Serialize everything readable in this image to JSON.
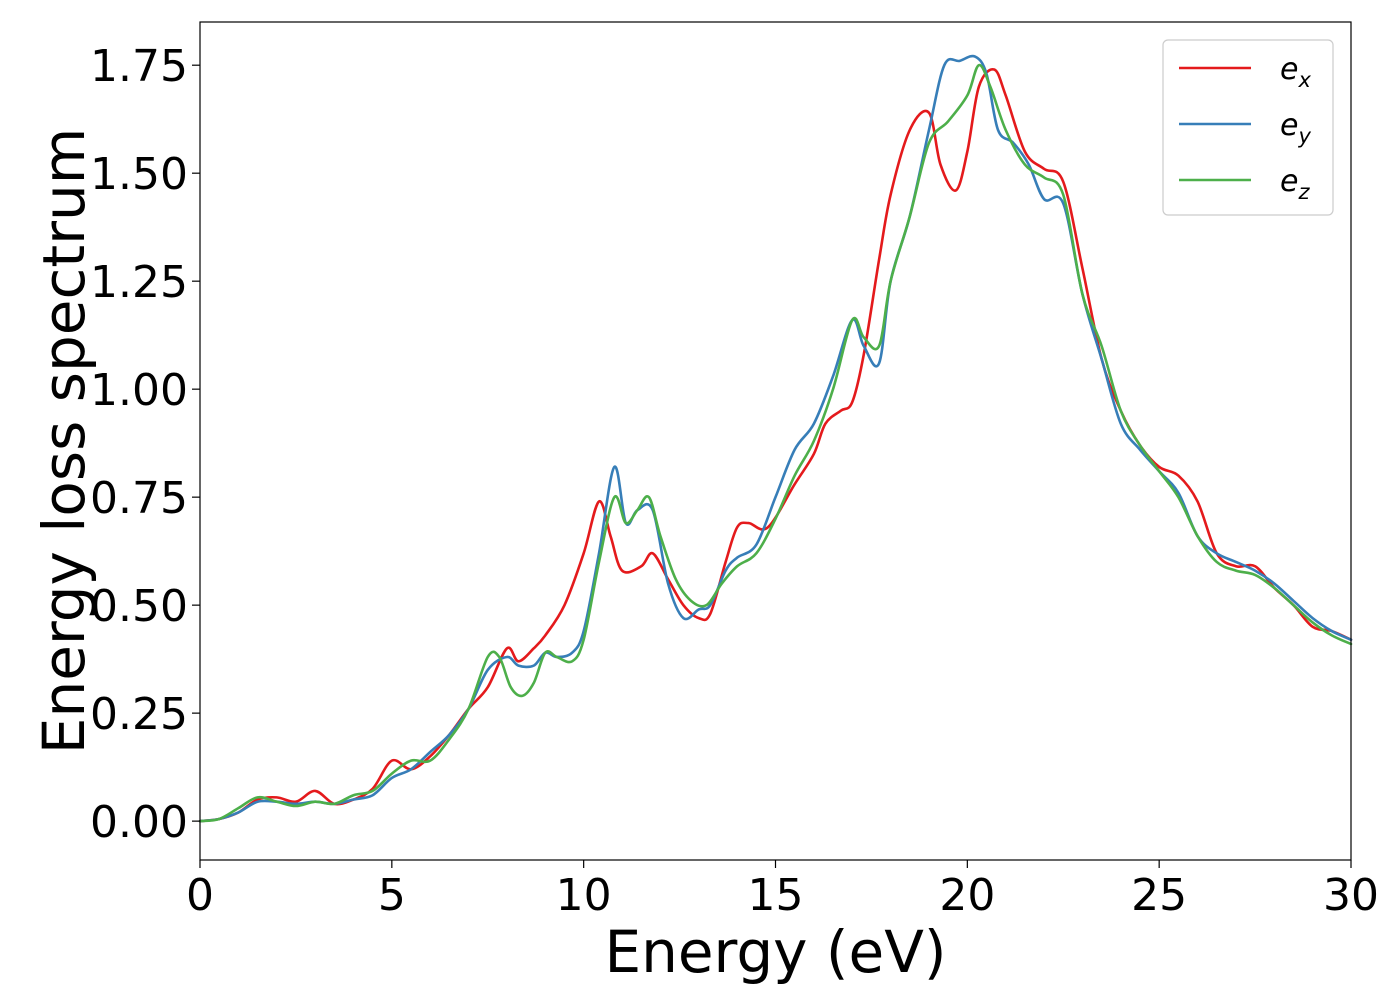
{
  "chart_data": {
    "type": "line",
    "title": "",
    "xlabel": "Energy (eV)",
    "ylabel": "Energy loss spectrum",
    "xlim": [
      0,
      30
    ],
    "ylim": [
      -0.09,
      1.85
    ],
    "xticks": [
      0,
      5,
      10,
      15,
      20,
      25,
      30
    ],
    "xtick_labels": [
      "0",
      "5",
      "10",
      "15",
      "20",
      "25",
      "30"
    ],
    "yticks": [
      0,
      0.25,
      0.5,
      0.75,
      1.0,
      1.25,
      1.5,
      1.75
    ],
    "ytick_labels": [
      "0.00",
      "0.25",
      "0.50",
      "0.75",
      "1.00",
      "1.25",
      "1.50",
      "1.75"
    ],
    "grid": false,
    "legend_position": "top-right",
    "series": [
      {
        "name": "e_x",
        "label_base": "e",
        "label_sub": "x",
        "color": "#e41a1c",
        "x": [
          0,
          0.5,
          1.0,
          1.5,
          2.0,
          2.5,
          3.0,
          3.5,
          4.0,
          4.5,
          5.0,
          5.5,
          6.0,
          6.5,
          7.0,
          7.5,
          8.0,
          8.3,
          8.7,
          9.0,
          9.5,
          10.0,
          10.4,
          10.7,
          11.0,
          11.5,
          11.8,
          12.2,
          12.6,
          13.0,
          13.3,
          13.7,
          14.0,
          14.3,
          14.8,
          15.5,
          16.0,
          16.3,
          16.7,
          17.0,
          17.3,
          17.7,
          18.0,
          18.5,
          19.0,
          19.3,
          19.7,
          20.0,
          20.3,
          20.7,
          21.0,
          21.5,
          22.0,
          22.5,
          23.0,
          23.5,
          24.0,
          24.5,
          25.0,
          25.5,
          26.0,
          26.5,
          27.0,
          27.5,
          28.0,
          28.5,
          29.0,
          29.5,
          30.0
        ],
        "values": [
          0.0,
          0.005,
          0.02,
          0.05,
          0.055,
          0.045,
          0.07,
          0.04,
          0.05,
          0.075,
          0.14,
          0.12,
          0.15,
          0.2,
          0.26,
          0.31,
          0.4,
          0.37,
          0.4,
          0.43,
          0.5,
          0.62,
          0.74,
          0.66,
          0.58,
          0.59,
          0.62,
          0.56,
          0.5,
          0.47,
          0.48,
          0.6,
          0.68,
          0.69,
          0.68,
          0.78,
          0.85,
          0.92,
          0.95,
          0.97,
          1.08,
          1.3,
          1.45,
          1.6,
          1.64,
          1.52,
          1.46,
          1.55,
          1.7,
          1.74,
          1.68,
          1.55,
          1.51,
          1.48,
          1.28,
          1.07,
          0.95,
          0.87,
          0.82,
          0.8,
          0.74,
          0.62,
          0.59,
          0.59,
          0.54,
          0.5,
          0.45,
          0.44,
          0.42
        ]
      },
      {
        "name": "e_y",
        "label_base": "e",
        "label_sub": "y",
        "color": "#377eb8",
        "x": [
          0,
          0.5,
          1.0,
          1.5,
          2.0,
          2.5,
          3.0,
          3.5,
          4.0,
          4.5,
          5.0,
          5.5,
          6.0,
          6.5,
          7.0,
          7.5,
          8.0,
          8.3,
          8.7,
          9.0,
          9.3,
          9.7,
          10.0,
          10.4,
          10.8,
          11.1,
          11.4,
          11.8,
          12.2,
          12.6,
          13.0,
          13.3,
          13.7,
          14.0,
          14.5,
          15.0,
          15.5,
          16.0,
          16.5,
          17.0,
          17.3,
          17.7,
          18.0,
          18.5,
          19.0,
          19.4,
          19.8,
          20.2,
          20.5,
          20.8,
          21.2,
          21.6,
          22.0,
          22.5,
          23.0,
          23.5,
          24.0,
          24.5,
          25.0,
          25.5,
          26.0,
          26.5,
          27.0,
          27.5,
          28.0,
          28.5,
          29.0,
          29.5,
          30.0
        ],
        "values": [
          0.0,
          0.005,
          0.02,
          0.045,
          0.045,
          0.04,
          0.045,
          0.04,
          0.05,
          0.06,
          0.1,
          0.12,
          0.16,
          0.2,
          0.26,
          0.35,
          0.38,
          0.36,
          0.36,
          0.39,
          0.38,
          0.39,
          0.44,
          0.62,
          0.82,
          0.69,
          0.72,
          0.72,
          0.55,
          0.47,
          0.49,
          0.5,
          0.58,
          0.61,
          0.64,
          0.75,
          0.86,
          0.92,
          1.03,
          1.16,
          1.1,
          1.06,
          1.25,
          1.4,
          1.6,
          1.75,
          1.76,
          1.77,
          1.73,
          1.6,
          1.57,
          1.52,
          1.44,
          1.43,
          1.22,
          1.07,
          0.92,
          0.86,
          0.81,
          0.76,
          0.66,
          0.62,
          0.6,
          0.58,
          0.55,
          0.51,
          0.47,
          0.44,
          0.42
        ]
      },
      {
        "name": "e_z",
        "label_base": "e",
        "label_sub": "z",
        "color": "#4daf4a",
        "x": [
          0,
          0.5,
          1.0,
          1.5,
          2.0,
          2.5,
          3.0,
          3.5,
          4.0,
          4.5,
          5.0,
          5.5,
          6.0,
          6.5,
          7.0,
          7.5,
          7.8,
          8.1,
          8.4,
          8.7,
          9.0,
          9.3,
          9.7,
          10.0,
          10.4,
          10.8,
          11.1,
          11.4,
          11.7,
          12.0,
          12.4,
          12.8,
          13.2,
          13.6,
          14.0,
          14.5,
          15.0,
          15.5,
          16.0,
          16.5,
          17.0,
          17.3,
          17.7,
          18.0,
          18.5,
          19.0,
          19.5,
          20.0,
          20.3,
          20.6,
          21.0,
          21.5,
          22.0,
          22.5,
          23.0,
          23.5,
          24.0,
          24.5,
          25.0,
          25.5,
          26.0,
          26.5,
          27.0,
          27.5,
          28.0,
          28.5,
          29.0,
          29.5,
          30.0
        ],
        "values": [
          0.0,
          0.005,
          0.03,
          0.055,
          0.045,
          0.035,
          0.045,
          0.04,
          0.06,
          0.07,
          0.11,
          0.14,
          0.14,
          0.19,
          0.26,
          0.38,
          0.38,
          0.31,
          0.29,
          0.32,
          0.39,
          0.38,
          0.37,
          0.42,
          0.6,
          0.75,
          0.69,
          0.72,
          0.75,
          0.66,
          0.56,
          0.51,
          0.5,
          0.55,
          0.59,
          0.62,
          0.7,
          0.8,
          0.88,
          1.0,
          1.16,
          1.12,
          1.1,
          1.25,
          1.4,
          1.57,
          1.62,
          1.68,
          1.75,
          1.7,
          1.6,
          1.52,
          1.49,
          1.45,
          1.22,
          1.1,
          0.95,
          0.87,
          0.81,
          0.75,
          0.66,
          0.6,
          0.58,
          0.57,
          0.54,
          0.5,
          0.46,
          0.43,
          0.41
        ]
      }
    ]
  }
}
